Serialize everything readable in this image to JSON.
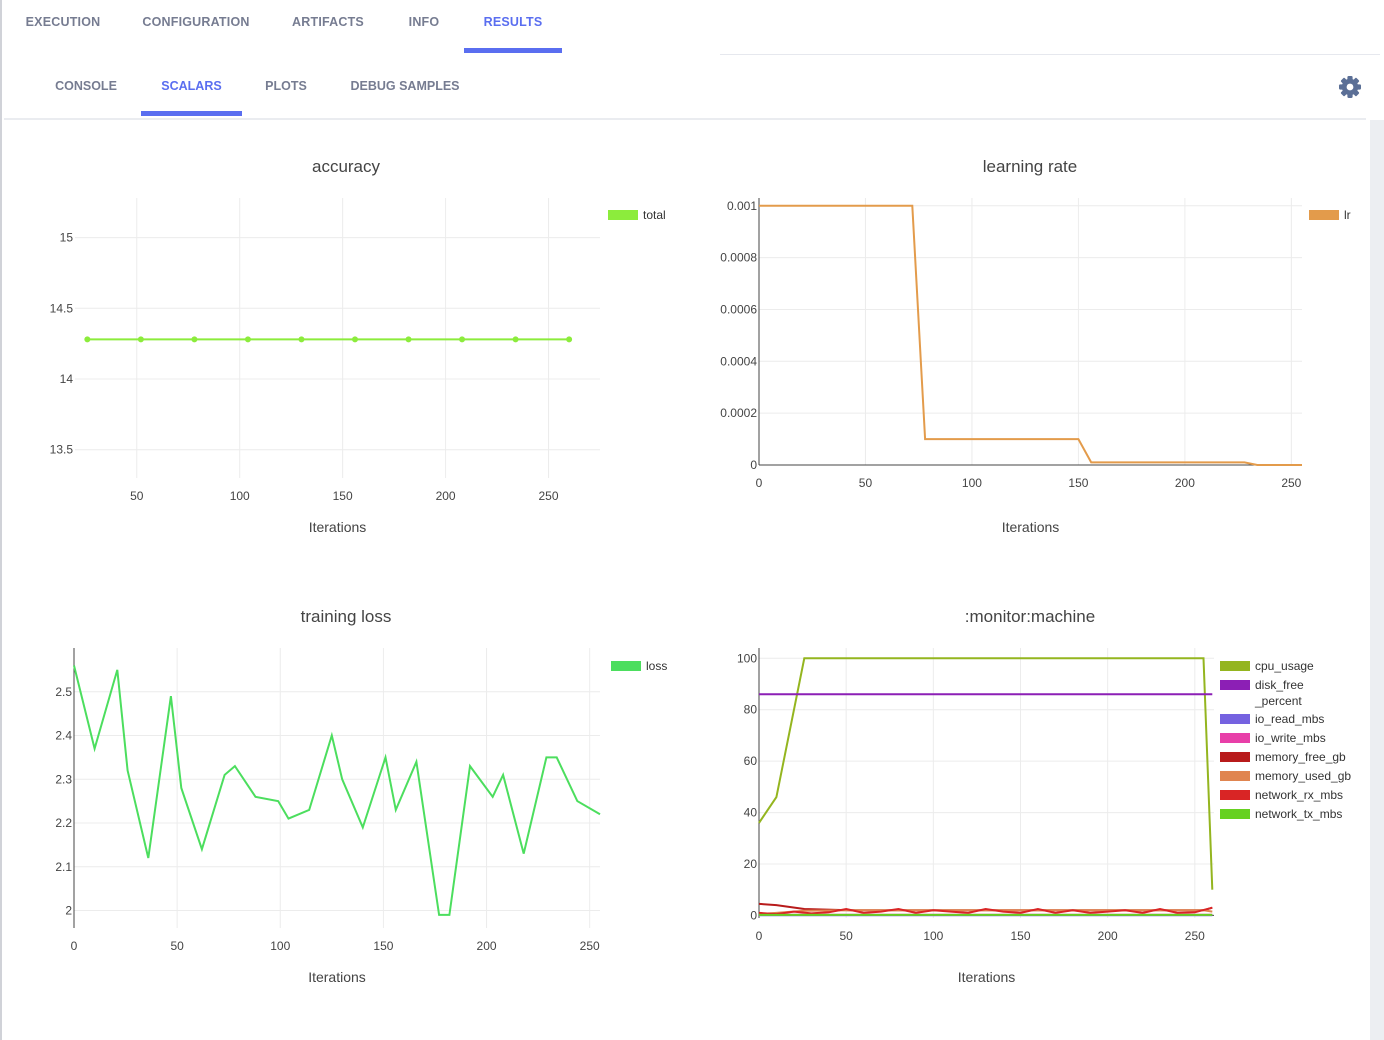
{
  "top_tabs": [
    "EXECUTION",
    "CONFIGURATION",
    "ARTIFACTS",
    "INFO",
    "RESULTS"
  ],
  "top_active": "RESULTS",
  "sub_tabs": [
    "CONSOLE",
    "SCALARS",
    "PLOTS",
    "DEBUG SAMPLES"
  ],
  "sub_active": "SCALARS",
  "settings_icon": "gear-icon",
  "colors": {
    "accent": "#5a6ef0",
    "tab_text": "#767c91"
  },
  "chart_data": [
    {
      "id": "accuracy",
      "type": "line",
      "title": "accuracy",
      "xlabel": "Iterations",
      "ylabel": "",
      "markers": true,
      "grid": true,
      "legend": "top-right",
      "xlim": [
        20,
        275
      ],
      "ylim": [
        13.3,
        15.28
      ],
      "xticks": [
        50,
        100,
        150,
        200,
        250
      ],
      "yticks": [
        13.5,
        14,
        14.5,
        15
      ],
      "series": [
        {
          "name": "total",
          "color": "#8cec3c",
          "x": [
            26,
            52,
            78,
            104,
            130,
            156,
            182,
            208,
            234,
            260
          ],
          "y": [
            14.28,
            14.28,
            14.28,
            14.28,
            14.28,
            14.28,
            14.28,
            14.28,
            14.28,
            14.28
          ]
        }
      ]
    },
    {
      "id": "learning_rate",
      "type": "line",
      "title": "learning rate",
      "xlabel": "Iterations",
      "ylabel": "",
      "grid": true,
      "legend": "top-right",
      "xlim": [
        0,
        255
      ],
      "ylim": [
        0,
        0.00103
      ],
      "xticks": [
        0,
        50,
        100,
        150,
        200,
        250
      ],
      "ytick_labels": [
        "0",
        "0.0002",
        "0.0004",
        "0.0006",
        "0.0008",
        "0.001"
      ],
      "yticks": [
        0,
        0.0002,
        0.0004,
        0.0006,
        0.0008,
        0.001
      ],
      "series": [
        {
          "name": "lr",
          "color": "#e39b4b",
          "x": [
            0,
            72,
            78,
            150,
            156,
            228,
            234,
            255
          ],
          "y": [
            0.001,
            0.001,
            0.0001,
            0.0001,
            1e-05,
            1e-05,
            0.0,
            0.0
          ]
        }
      ]
    },
    {
      "id": "training_loss",
      "type": "line",
      "title": "training loss",
      "xlabel": "Iterations",
      "ylabel": "",
      "grid": true,
      "legend": "top-right",
      "xlim": [
        0,
        255
      ],
      "ylim": [
        1.96,
        2.6
      ],
      "xticks": [
        0,
        50,
        100,
        150,
        200,
        250
      ],
      "yticks": [
        2,
        2.1,
        2.2,
        2.3,
        2.4,
        2.5
      ],
      "series": [
        {
          "name": "loss",
          "color": "#4cde5e",
          "x": [
            0,
            10,
            21,
            26,
            36,
            47,
            52,
            62,
            73,
            78,
            88,
            99,
            104,
            114,
            125,
            130,
            140,
            151,
            156,
            166,
            177,
            182,
            192,
            203,
            208,
            218,
            229,
            234,
            244,
            255
          ],
          "y": [
            2.56,
            2.37,
            2.55,
            2.32,
            2.12,
            2.49,
            2.28,
            2.14,
            2.31,
            2.33,
            2.26,
            2.25,
            2.21,
            2.23,
            2.4,
            2.3,
            2.19,
            2.35,
            2.23,
            2.34,
            1.99,
            1.99,
            2.33,
            2.26,
            2.31,
            2.13,
            2.35,
            2.35,
            2.25,
            2.22
          ]
        }
      ]
    },
    {
      "id": "monitor_machine",
      "type": "line",
      "title": ":monitor:machine",
      "xlabel": "Iterations",
      "ylabel": "",
      "grid": true,
      "legend": "top-right",
      "xlim": [
        0,
        261
      ],
      "ylim": [
        -1,
        104
      ],
      "xticks": [
        0,
        50,
        100,
        150,
        200,
        250
      ],
      "yticks": [
        0,
        20,
        40,
        60,
        80,
        100
      ],
      "series": [
        {
          "name": "cpu_usage",
          "color": "#94b51f",
          "x": [
            0,
            10,
            26,
            255,
            260
          ],
          "y": [
            36,
            46,
            100,
            100,
            10
          ]
        },
        {
          "name": "disk_free_percent",
          "legend_lines": [
            "disk_free",
            "_percent"
          ],
          "color": "#8c1fb5",
          "x": [
            0,
            260
          ],
          "y": [
            86,
            86
          ]
        },
        {
          "name": "io_read_mbs",
          "color": "#7562e0",
          "x": [
            0,
            260
          ],
          "y": [
            0.1,
            0.1
          ]
        },
        {
          "name": "io_write_mbs",
          "color": "#e83fa8",
          "x": [
            0,
            260
          ],
          "y": [
            0.3,
            0.3
          ]
        },
        {
          "name": "memory_free_gb",
          "color": "#b81b1b",
          "x": [
            0,
            10,
            26,
            52,
            78,
            104,
            130,
            156,
            182,
            208,
            234,
            255,
            260
          ],
          "y": [
            4.5,
            4,
            2.5,
            2,
            2,
            2,
            2,
            2,
            2,
            2,
            2,
            2,
            3
          ]
        },
        {
          "name": "memory_used_gb",
          "color": "#e08550",
          "x": [
            0,
            10,
            26,
            52,
            78,
            104,
            130,
            156,
            182,
            208,
            234,
            255,
            260
          ],
          "y": [
            0.5,
            1,
            1.8,
            2,
            2,
            2,
            2,
            2,
            2,
            2,
            2,
            2,
            1.5
          ]
        },
        {
          "name": "network_rx_mbs",
          "color": "#d92525",
          "x": [
            0,
            10,
            20,
            30,
            40,
            50,
            60,
            70,
            80,
            90,
            100,
            110,
            120,
            130,
            140,
            150,
            160,
            170,
            180,
            190,
            200,
            210,
            220,
            230,
            240,
            250,
            260
          ],
          "y": [
            1,
            0.5,
            1.5,
            0.8,
            1.2,
            2.5,
            1,
            1.5,
            2.5,
            1,
            2,
            1.5,
            1,
            2.5,
            1.5,
            1,
            2.5,
            1,
            2,
            1,
            1.5,
            2,
            1,
            2.5,
            1,
            1.2,
            3
          ]
        },
        {
          "name": "network_tx_mbs",
          "color": "#66d121",
          "x": [
            0,
            260
          ],
          "y": [
            0.2,
            0.2
          ]
        }
      ]
    }
  ]
}
